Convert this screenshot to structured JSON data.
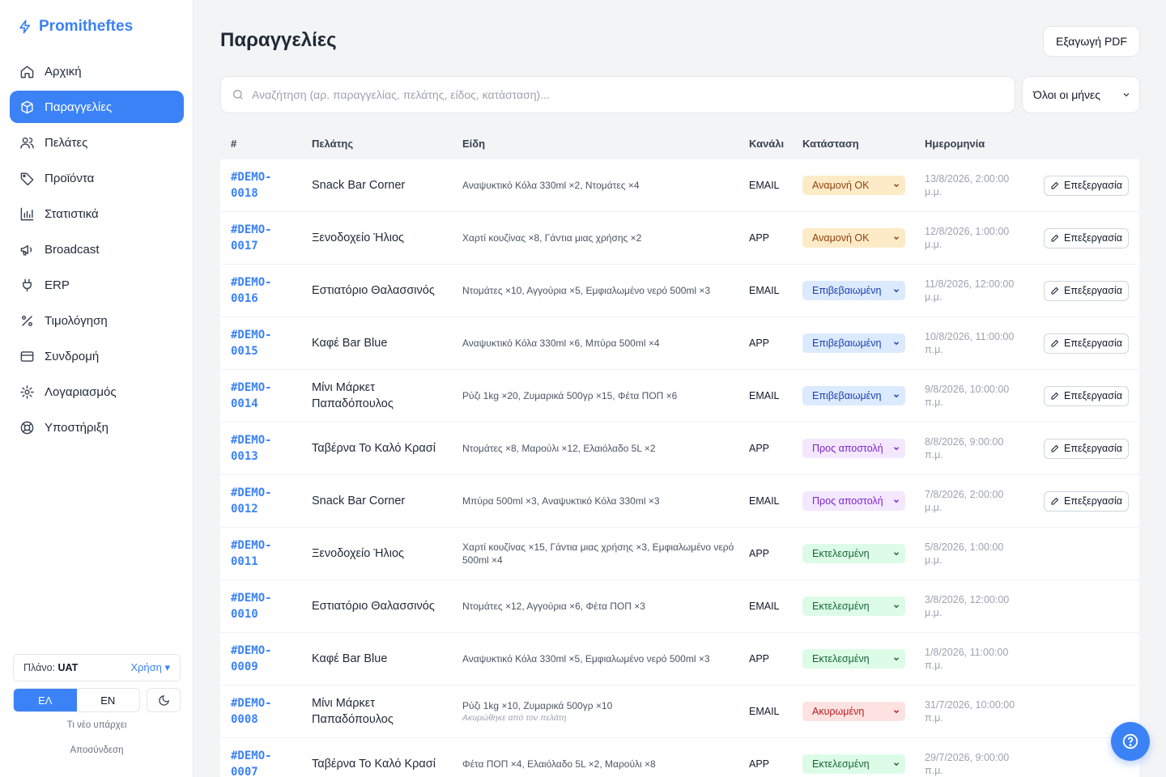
{
  "brand": {
    "name": "Promitheftes"
  },
  "sidebar": {
    "items": [
      {
        "label": "Αρχική",
        "icon": "home-icon",
        "active": false
      },
      {
        "label": "Παραγγελίες",
        "icon": "box-icon",
        "active": true
      },
      {
        "label": "Πελάτες",
        "icon": "users-icon",
        "active": false
      },
      {
        "label": "Προϊόντα",
        "icon": "tag-icon",
        "active": false
      },
      {
        "label": "Στατιστικά",
        "icon": "bar-chart-icon",
        "active": false
      },
      {
        "label": "Broadcast",
        "icon": "megaphone-icon",
        "active": false
      },
      {
        "label": "ERP",
        "icon": "plug-icon",
        "active": false
      },
      {
        "label": "Τιμολόγηση",
        "icon": "percent-icon",
        "active": false
      },
      {
        "label": "Συνδρομή",
        "icon": "credit-card-icon",
        "active": false
      },
      {
        "label": "Λογαριασμός",
        "icon": "gear-icon",
        "active": false
      },
      {
        "label": "Υποστήριξη",
        "icon": "lifebuoy-icon",
        "active": false
      }
    ],
    "plan_label": "Πλάνο:",
    "plan_value": "UAT",
    "usage_link": "Χρήση ▾",
    "lang_el": "ΕΛ",
    "lang_en": "EN",
    "whats_new": "Τι νέο υπάρχει",
    "logout": "Αποσύνδεση"
  },
  "header": {
    "title": "Παραγγελίες",
    "export_label": "Εξαγωγή PDF"
  },
  "search": {
    "placeholder": "Αναζήτηση (αρ. παραγγελίας, πελάτης, είδος, κατάσταση)..."
  },
  "month_filter": {
    "selected": "Όλοι οι μήνες"
  },
  "table": {
    "columns": [
      "#",
      "Πελάτης",
      "Είδη",
      "Κανάλι",
      "Κατάσταση",
      "Ημερομηνία"
    ],
    "edit_label": "Επεξεργασία",
    "rows": [
      {
        "id_a": "#DEMO-",
        "id_b": "0018",
        "customer": "Snack Bar Corner",
        "items": "Αναψυκτικό Κόλα 330ml ×2, Ντομάτες ×4",
        "note": "",
        "channel": "EMAIL",
        "status": "Αναμονή ΟΚ",
        "status_kind": "pending",
        "date_a": "13/8/2026, 2:00:00",
        "date_b": "μ.μ.",
        "editable": true
      },
      {
        "id_a": "#DEMO-",
        "id_b": "0017",
        "customer": "Ξενοδοχείο Ήλιος",
        "items": "Χαρτί κουζίνας ×8, Γάντια μιας χρήσης ×2",
        "note": "",
        "channel": "APP",
        "status": "Αναμονή ΟΚ",
        "status_kind": "pending",
        "date_a": "12/8/2026, 1:00:00",
        "date_b": "μ.μ.",
        "editable": true
      },
      {
        "id_a": "#DEMO-",
        "id_b": "0016",
        "customer": "Εστιατόριο Θαλασσινός",
        "items": "Ντομάτες ×10, Αγγούρια ×5, Εμφιαλωμένο νερό 500ml ×3",
        "note": "",
        "channel": "EMAIL",
        "status": "Επιβεβαιωμένη",
        "status_kind": "confirmed",
        "date_a": "11/8/2026, 12:00:00",
        "date_b": "μ.μ.",
        "editable": true
      },
      {
        "id_a": "#DEMO-",
        "id_b": "0015",
        "customer": "Καφέ Bar Blue",
        "items": "Αναψυκτικό Κόλα 330ml ×6, Μπύρα 500ml ×4",
        "note": "",
        "channel": "APP",
        "status": "Επιβεβαιωμένη",
        "status_kind": "confirmed",
        "date_a": "10/8/2026, 11:00:00",
        "date_b": "π.μ.",
        "editable": true
      },
      {
        "id_a": "#DEMO-",
        "id_b": "0014",
        "customer": "Μίνι Μάρκετ Παπαδόπουλος",
        "items": "Ρύζι 1kg ×20, Ζυμαρικά 500γρ ×15, Φέτα ΠΟΠ ×6",
        "note": "",
        "channel": "EMAIL",
        "status": "Επιβεβαιωμένη",
        "status_kind": "confirmed",
        "date_a": "9/8/2026, 10:00:00",
        "date_b": "π.μ.",
        "editable": true
      },
      {
        "id_a": "#DEMO-",
        "id_b": "0013",
        "customer": "Ταβέρνα Το Καλό Κρασί",
        "items": "Ντομάτες ×8, Μαρούλι ×12, Ελαιόλαδο 5L ×2",
        "note": "",
        "channel": "APP",
        "status": "Προς αποστολή",
        "status_kind": "shipping",
        "date_a": "8/8/2026, 9:00:00",
        "date_b": "π.μ.",
        "editable": true
      },
      {
        "id_a": "#DEMO-",
        "id_b": "0012",
        "customer": "Snack Bar Corner",
        "items": "Μπύρα 500ml ×3, Αναψυκτικό Κόλα 330ml ×3",
        "note": "",
        "channel": "EMAIL",
        "status": "Προς αποστολή",
        "status_kind": "shipping",
        "date_a": "7/8/2026, 2:00:00",
        "date_b": "μ.μ.",
        "editable": true
      },
      {
        "id_a": "#DEMO-",
        "id_b": "0011",
        "customer": "Ξενοδοχείο Ήλιος",
        "items": "Χαρτί κουζίνας ×15, Γάντια μιας χρήσης ×3, Εμφιαλωμένο νερό 500ml ×4",
        "note": "",
        "channel": "APP",
        "status": "Εκτελεσμένη",
        "status_kind": "done",
        "date_a": "5/8/2026, 1:00:00",
        "date_b": "μ.μ.",
        "editable": false
      },
      {
        "id_a": "#DEMO-",
        "id_b": "0010",
        "customer": "Εστιατόριο Θαλασσινός",
        "items": "Ντομάτες ×12, Αγγούρια ×6, Φέτα ΠΟΠ ×3",
        "note": "",
        "channel": "EMAIL",
        "status": "Εκτελεσμένη",
        "status_kind": "done",
        "date_a": "3/8/2026, 12:00:00",
        "date_b": "μ.μ.",
        "editable": false
      },
      {
        "id_a": "#DEMO-",
        "id_b": "0009",
        "customer": "Καφέ Bar Blue",
        "items": "Αναψυκτικό Κόλα 330ml ×5, Εμφιαλωμένο νερό 500ml ×3",
        "note": "",
        "channel": "APP",
        "status": "Εκτελεσμένη",
        "status_kind": "done",
        "date_a": "1/8/2026, 11:00:00",
        "date_b": "π.μ.",
        "editable": false
      },
      {
        "id_a": "#DEMO-",
        "id_b": "0008",
        "customer": "Μίνι Μάρκετ Παπαδόπουλος",
        "items": "Ρύζι 1kg ×10, Ζυμαρικά 500γρ ×10",
        "note": "Ακυρώθηκε από τον πελάτη",
        "channel": "EMAIL",
        "status": "Ακυρωμένη",
        "status_kind": "cancel",
        "date_a": "31/7/2026, 10:00:00",
        "date_b": "π.μ.",
        "editable": false
      },
      {
        "id_a": "#DEMO-",
        "id_b": "0007",
        "customer": "Ταβέρνα Το Καλό Κρασί",
        "items": "Φέτα ΠΟΠ ×4, Ελαιόλαδο 5L ×2, Μαρούλι ×8",
        "note": "",
        "channel": "APP",
        "status": "Εκτελεσμένη",
        "status_kind": "done",
        "date_a": "29/7/2026, 9:00:00",
        "date_b": "π.μ.",
        "editable": false
      }
    ]
  },
  "colors": {
    "accent": "#3b82f6"
  }
}
